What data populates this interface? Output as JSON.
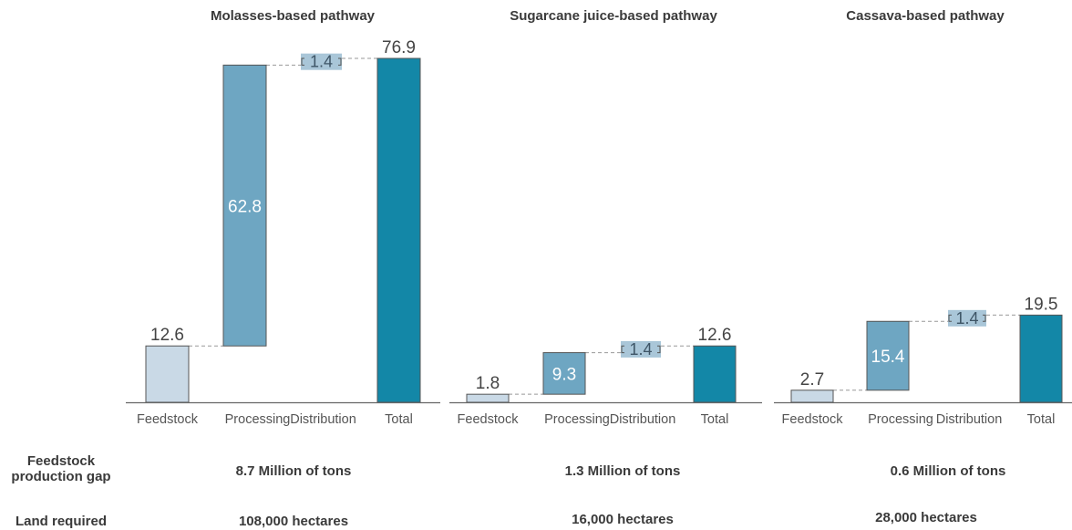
{
  "chart_data": [
    {
      "type": "bar",
      "title": "Molasses-based pathway",
      "categories": [
        "Feedstock",
        "Processing",
        "Distribution",
        "Total"
      ],
      "values": [
        12.6,
        62.8,
        1.4,
        76.9
      ],
      "labels": [
        "12.6",
        "62.8",
        "1.4",
        "76.9"
      ],
      "ylim": [
        0,
        80
      ]
    },
    {
      "type": "bar",
      "title": "Sugarcane juice-based pathway",
      "categories": [
        "Feedstock",
        "Processing",
        "Distribution",
        "Total"
      ],
      "values": [
        1.8,
        9.3,
        1.4,
        12.6
      ],
      "labels": [
        "1.8",
        "9.3",
        "1.4",
        "12.6"
      ],
      "ylim": [
        0,
        80
      ]
    },
    {
      "type": "bar",
      "title": "Cassava-based pathway",
      "categories": [
        "Feedstock",
        "Processing",
        "Distribution",
        "Total"
      ],
      "values": [
        2.7,
        15.4,
        1.4,
        19.5
      ],
      "labels": [
        "2.7",
        "15.4",
        "1.4",
        "19.5"
      ],
      "ylim": [
        0,
        80
      ]
    }
  ],
  "colors": {
    "feedstock": "#c9d9e6",
    "processing": "#6ea6c2",
    "distribution": "#a9c6d8",
    "total": "#1387a7",
    "axis": "#666666",
    "connector": "#999999"
  },
  "rows": {
    "gap_label": "Feedstock\nproduction gap",
    "gap_values": [
      "8.7 Million of tons",
      "1.3 Million of tons",
      "0.6 Million of tons"
    ],
    "land_label": "Land required",
    "land_values": [
      "108,000 hectares",
      "16,000 hectares",
      "28,000 hectares"
    ]
  }
}
